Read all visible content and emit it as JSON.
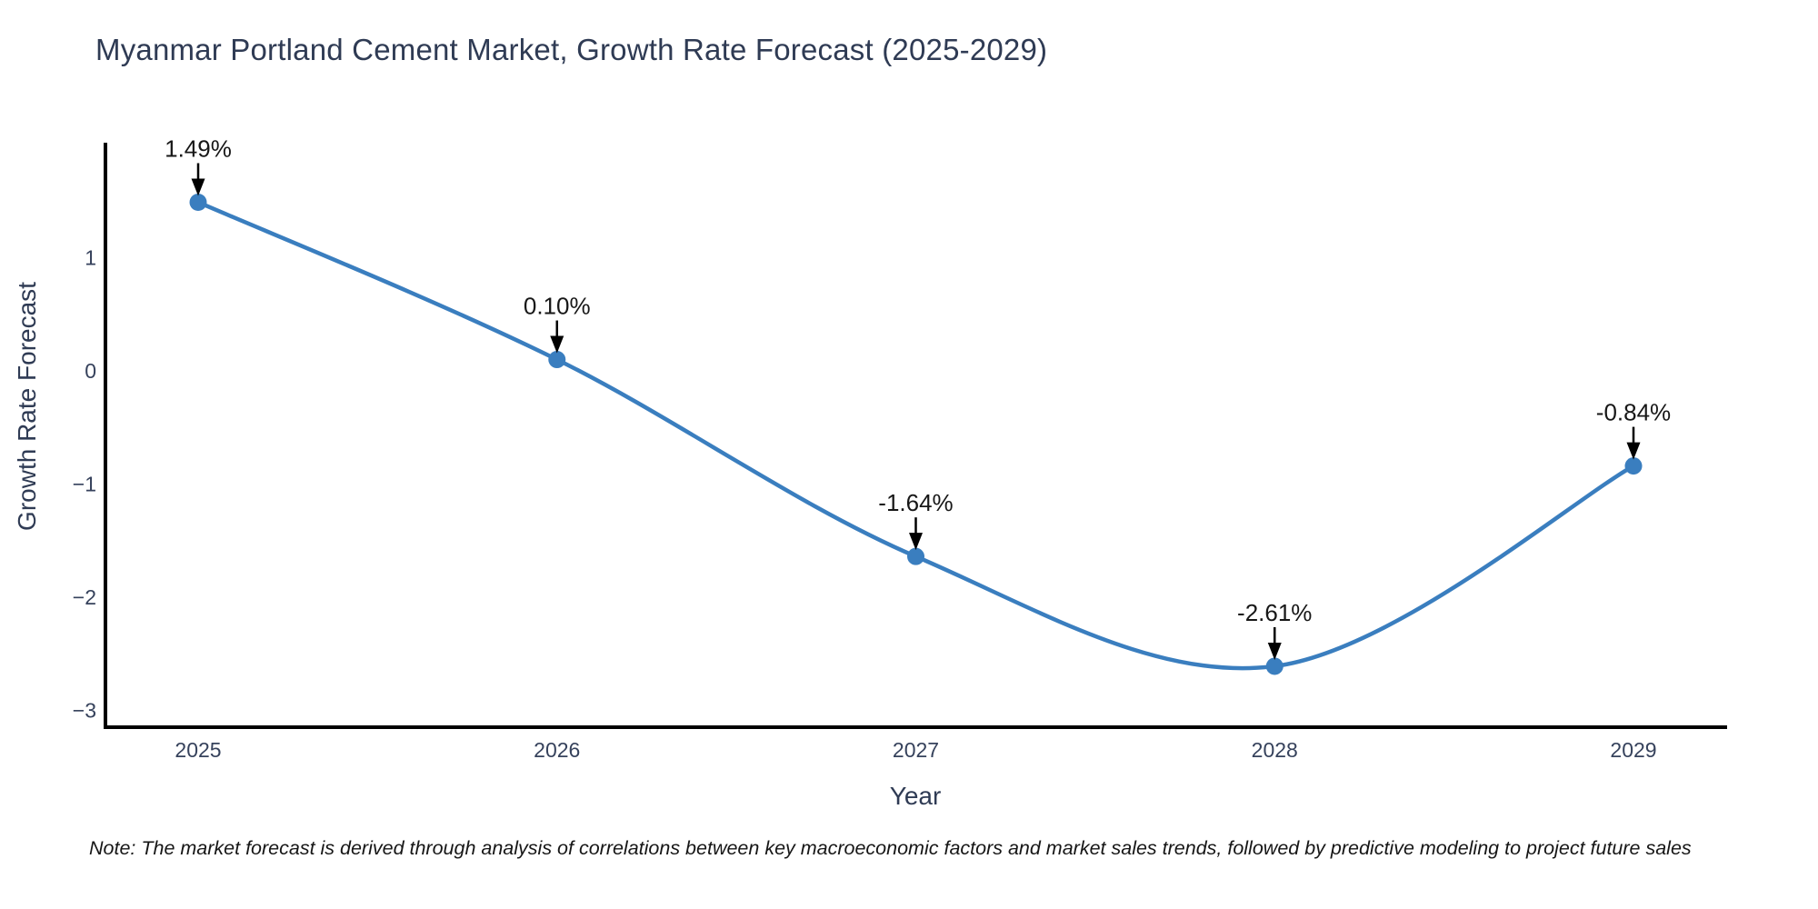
{
  "page": {
    "background": "#ffffff"
  },
  "note": "Note: The market forecast is derived through analysis of correlations between key macroeconomic factors and market sales trends, followed by predictive modeling to project future sales",
  "chart_data": {
    "type": "line",
    "title": "Myanmar Portland Cement Market, Growth Rate Forecast (2025-2029)",
    "xlabel": "Year",
    "ylabel": "Growth Rate Forecast",
    "categories": [
      "2025",
      "2026",
      "2027",
      "2028",
      "2029"
    ],
    "values": [
      1.49,
      0.1,
      -1.64,
      -2.61,
      -0.84
    ],
    "point_labels": [
      "1.49%",
      "0.10%",
      "-1.64%",
      "-2.61%",
      "-0.84%"
    ],
    "yticks": [
      {
        "value": 1,
        "label": "1"
      },
      {
        "value": 0,
        "label": "0"
      },
      {
        "value": -1,
        "label": "−1"
      },
      {
        "value": -2,
        "label": "−2"
      },
      {
        "value": -3,
        "label": "−3"
      }
    ],
    "ylim": [
      -3.17,
      2.01
    ],
    "grid": false,
    "legend": "none",
    "line_shape": "spline",
    "colors": {
      "line": "#3a7ebf",
      "marker": "#3a7ebf",
      "annotation": "#000000",
      "axis": "#000000",
      "title_text": "#2f3b54",
      "tick_text": "#36425c"
    }
  }
}
